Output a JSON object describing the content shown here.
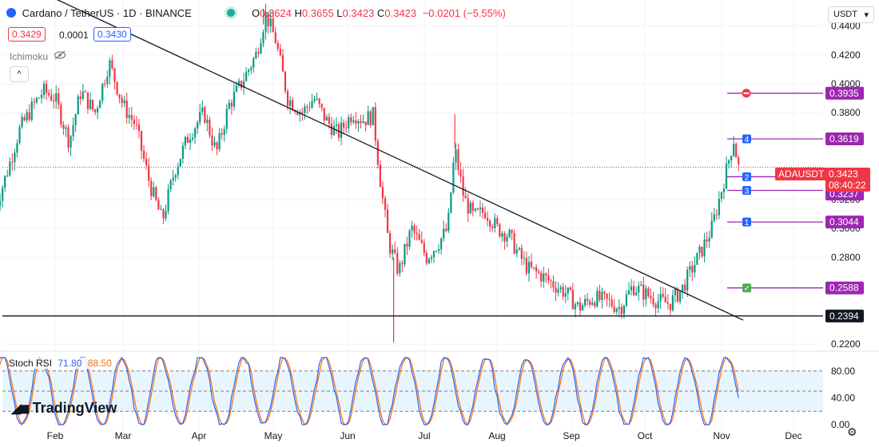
{
  "header": {
    "symbol_title": "Cardano / TetherUS · 1D · BINANCE",
    "ohlc": [
      {
        "label": "O",
        "value": "0.3624"
      },
      {
        "label": "H",
        "value": "0.3655"
      },
      {
        "label": "L",
        "value": "0.3423"
      },
      {
        "label": "C",
        "value": "0.3423"
      }
    ],
    "change": "−0.0201 (−5.55%)",
    "bid": "0.3429",
    "spread": "0.0001",
    "ask": "0.3430",
    "indicator": "Ichimoku",
    "currency": "USDT",
    "collapse_icon": "chevron-up-icon",
    "visibility_icon": "eye-off-icon"
  },
  "branding": {
    "logo_text": "TradingView"
  },
  "colors": {
    "up": "#089981",
    "down": "#f23645",
    "purple": "#9c27b0",
    "blue_marker": "#2962ff",
    "stoch_k": "#2962ff",
    "stoch_d": "#ff6d00",
    "band_fill": "#e3f2fd"
  },
  "chart_data": [
    {
      "type": "candlestick",
      "title": "Cardano / TetherUS · 1D · BINANCE",
      "x_ticks": [
        "Feb",
        "Mar",
        "Apr",
        "May",
        "Jun",
        "Jul",
        "Aug",
        "Sep",
        "Oct",
        "Nov",
        "Dec"
      ],
      "y_ticks": [
        "0.2200",
        "0.2800",
        "0.3000",
        "0.3200",
        "0.3800",
        "0.4000",
        "0.4200",
        "0.4400"
      ],
      "ylim": [
        0.215,
        0.458
      ],
      "current_price": {
        "symbol": "ADAUSDT",
        "price": "0.3423",
        "countdown": "08:40:22"
      },
      "price_levels": [
        {
          "label": "0.3935",
          "value": 0.3935,
          "marker": "stop"
        },
        {
          "label": "0.3619",
          "value": 0.3619,
          "marker": "4"
        },
        {
          "label": "0.3357",
          "value": 0.3357,
          "marker": "2"
        },
        {
          "label": "0.3237",
          "value": 0.3237,
          "marker": ""
        },
        {
          "label": "0.3044",
          "value": 0.3044,
          "marker": "1"
        },
        {
          "label": "0.2588",
          "value": 0.2588,
          "marker": "check"
        }
      ],
      "inner_level_markers": [
        {
          "marker": "3",
          "value": 0.3263
        }
      ],
      "support_line": {
        "label": "0.2394",
        "value": 0.2394
      },
      "trendline": {
        "from": {
          "date": "Jan 10",
          "value": 0.473
        },
        "to": {
          "date": "Nov 10",
          "value": 0.2365
        }
      },
      "close_path": [
        [
          "Jan 01",
          0.31
        ],
        [
          "Jan 08",
          0.34
        ],
        [
          "Jan 14",
          0.368
        ],
        [
          "Jan 21",
          0.385
        ],
        [
          "Jan 26",
          0.395
        ],
        [
          "Feb 01",
          0.39
        ],
        [
          "Feb 07",
          0.36
        ],
        [
          "Feb 12",
          0.395
        ],
        [
          "Feb 18",
          0.38
        ],
        [
          "Feb 24",
          0.415
        ],
        [
          "Mar 01",
          0.385
        ],
        [
          "Mar 06",
          0.372
        ],
        [
          "Mar 12",
          0.33
        ],
        [
          "Mar 17",
          0.305
        ],
        [
          "Mar 22",
          0.34
        ],
        [
          "Mar 28",
          0.365
        ],
        [
          "Apr 03",
          0.38
        ],
        [
          "Apr 08",
          0.352
        ],
        [
          "Apr 13",
          0.385
        ],
        [
          "Apr 18",
          0.4
        ],
        [
          "Apr 24",
          0.42
        ],
        [
          "Apr 28",
          0.448
        ],
        [
          "May 02",
          0.43
        ],
        [
          "May 07",
          0.39
        ],
        [
          "May 13",
          0.38
        ],
        [
          "May 18",
          0.39
        ],
        [
          "May 23",
          0.375
        ],
        [
          "May 28",
          0.365
        ],
        [
          "Jun 03",
          0.38
        ],
        [
          "Jun 07",
          0.375
        ],
        [
          "Jun 11",
          0.378
        ],
        [
          "Jun 14",
          0.33
        ],
        [
          "Jun 17",
          0.29
        ],
        [
          "Jun 21",
          0.27
        ],
        [
          "Jun 26",
          0.3
        ],
        [
          "Jul 02",
          0.28
        ],
        [
          "Jul 07",
          0.29
        ],
        [
          "Jul 11",
          0.3
        ],
        [
          "Jul 14",
          0.355
        ],
        [
          "Jul 18",
          0.32
        ],
        [
          "Jul 22",
          0.308
        ],
        [
          "Jul 27",
          0.312
        ],
        [
          "Aug 01",
          0.3
        ],
        [
          "Aug 06",
          0.295
        ],
        [
          "Aug 10",
          0.282
        ],
        [
          "Aug 14",
          0.272
        ],
        [
          "Aug 19",
          0.268
        ],
        [
          "Aug 24",
          0.262
        ],
        [
          "Aug 30",
          0.255
        ],
        [
          "Sep 04",
          0.245
        ],
        [
          "Sep 10",
          0.252
        ],
        [
          "Sep 16",
          0.249
        ],
        [
          "Sep 21",
          0.245
        ],
        [
          "Sep 26",
          0.26
        ],
        [
          "Oct 01",
          0.255
        ],
        [
          "Oct 06",
          0.25
        ],
        [
          "Oct 11",
          0.248
        ],
        [
          "Oct 16",
          0.258
        ],
        [
          "Oct 20",
          0.272
        ],
        [
          "Oct 24",
          0.285
        ],
        [
          "Oct 28",
          0.3
        ],
        [
          "Oct 31",
          0.32
        ],
        [
          "Nov 03",
          0.34
        ],
        [
          "Nov 06",
          0.362
        ],
        [
          "Nov 08",
          0.3423
        ]
      ],
      "wick_extremes": [
        {
          "date": "Jun 19",
          "low": 0.221
        },
        {
          "date": "Jul 14",
          "high": 0.379
        },
        {
          "date": "Apr 27",
          "high": 0.452
        }
      ]
    },
    {
      "type": "line",
      "title": "Stoch RSI",
      "legend": "Stoch RSI",
      "series": [
        {
          "name": "",
          "value_label": "71.80",
          "color": "#2962ff"
        },
        {
          "name": "",
          "value_label": "88.50",
          "color": "#ff6d00"
        }
      ],
      "y_ticks": [
        "0.00",
        "40.00",
        "80.00"
      ],
      "ylim": [
        0,
        100
      ],
      "band": [
        20,
        80
      ],
      "dashed_levels": [
        20,
        50,
        80
      ]
    }
  ]
}
